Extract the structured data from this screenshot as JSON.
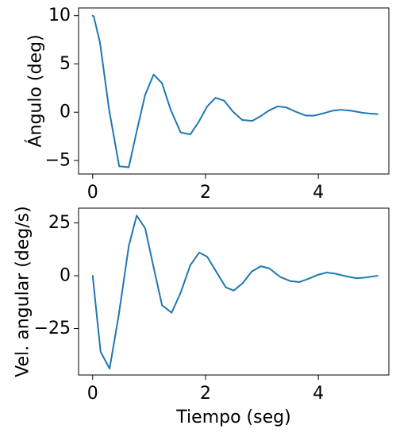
{
  "colors": {
    "series": "#1f77b4",
    "axes": "#000000",
    "background": "#ffffff"
  },
  "chart_data": [
    {
      "type": "line",
      "title": "",
      "xlabel": "",
      "ylabel": "Ángulo (deg)",
      "xlim": [
        -0.25,
        5.25
      ],
      "ylim": [
        -6.4,
        10.8
      ],
      "xticks": [
        0,
        2,
        4
      ],
      "yticks": [
        -5,
        0,
        5,
        10
      ],
      "xtick_labels": [
        "0",
        "2",
        "4"
      ],
      "ytick_labels": [
        "−5",
        "0",
        "5",
        "10"
      ],
      "grid": false,
      "series": [
        {
          "x": [
            0.0,
            0.02,
            0.13,
            0.29,
            0.47,
            0.64,
            0.78,
            0.93,
            1.08,
            1.23,
            1.38,
            1.56,
            1.73,
            1.88,
            2.03,
            2.18,
            2.33,
            2.48,
            2.65,
            2.83,
            2.98,
            3.13,
            3.28,
            3.43,
            3.58,
            3.78,
            3.93,
            4.1,
            4.25,
            4.4,
            4.58,
            4.78,
            4.93,
            5.05
          ],
          "y": [
            10.0,
            9.9,
            7.2,
            0.3,
            -5.6,
            -5.7,
            -2.0,
            1.8,
            3.9,
            3.0,
            0.3,
            -2.1,
            -2.3,
            -1.0,
            0.6,
            1.5,
            1.2,
            0.1,
            -0.8,
            -0.9,
            -0.4,
            0.2,
            0.6,
            0.5,
            0.1,
            -0.35,
            -0.35,
            -0.1,
            0.15,
            0.25,
            0.15,
            -0.05,
            -0.15,
            -0.2
          ]
        }
      ]
    },
    {
      "type": "line",
      "title": "",
      "xlabel": "Tiempo (seg)",
      "ylabel": "Vel. angular (deg/s)",
      "xlim": [
        -0.25,
        5.25
      ],
      "ylim": [
        -47,
        32
      ],
      "xticks": [
        0,
        2,
        4
      ],
      "yticks": [
        -25,
        0,
        25
      ],
      "xtick_labels": [
        "0",
        "2",
        "4"
      ],
      "ytick_labels": [
        "−25",
        "0",
        "25"
      ],
      "grid": false,
      "series": [
        {
          "x": [
            0.0,
            0.14,
            0.3,
            0.46,
            0.64,
            0.78,
            0.93,
            1.08,
            1.23,
            1.4,
            1.56,
            1.73,
            1.89,
            2.03,
            2.2,
            2.36,
            2.5,
            2.66,
            2.82,
            2.98,
            3.13,
            3.32,
            3.5,
            3.66,
            3.82,
            4.0,
            4.15,
            4.3,
            4.5,
            4.68,
            4.85,
            5.05
          ],
          "y": [
            0.0,
            -36.0,
            -44.0,
            -19.0,
            14.0,
            28.5,
            22.5,
            4.0,
            -14.0,
            -17.5,
            -8.0,
            5.0,
            11.0,
            9.0,
            1.5,
            -5.5,
            -7.0,
            -3.5,
            2.0,
            4.5,
            3.5,
            -0.5,
            -2.5,
            -3.0,
            -1.5,
            0.5,
            1.5,
            1.0,
            -0.3,
            -1.2,
            -0.8,
            0.0
          ]
        }
      ]
    }
  ]
}
